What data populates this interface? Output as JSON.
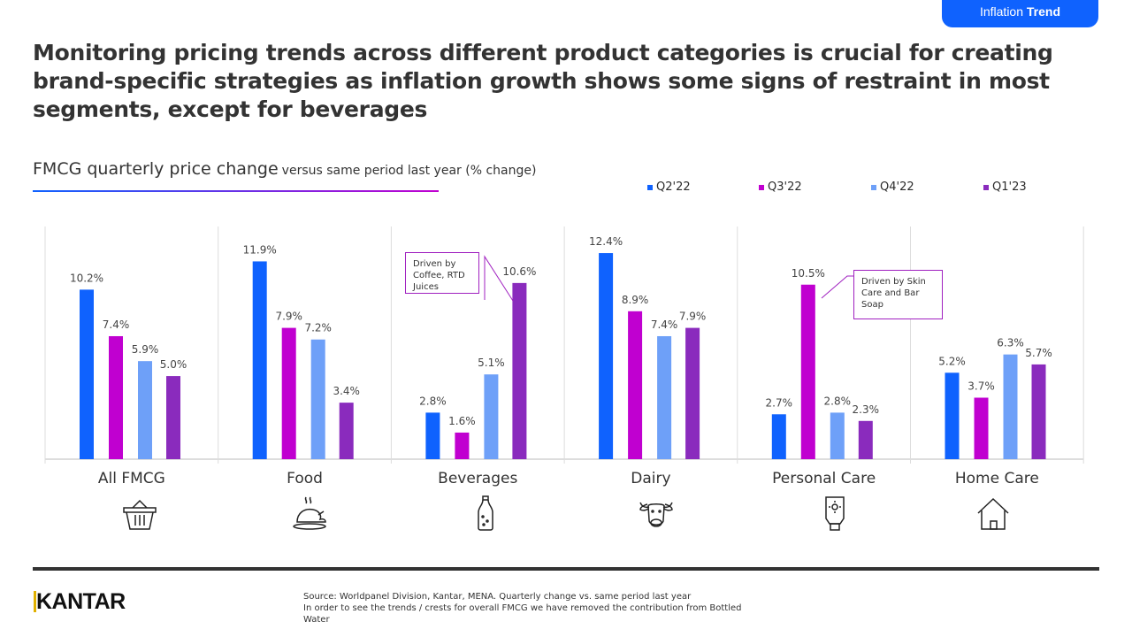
{
  "tag": {
    "prefix": "Inflation",
    "bold": "Trend"
  },
  "headline": "Monitoring pricing trends across different product categories is crucial for creating brand-specific strategies as inflation growth shows some signs of restraint in most segments, except for beverages",
  "subtitle": {
    "main": "FMCG quarterly price change",
    "detail": "versus same period last year (% change)"
  },
  "chart_data": {
    "type": "bar",
    "categories": [
      "All FMCG",
      "Food",
      "Beverages",
      "Dairy",
      "Personal Care",
      "Home Care"
    ],
    "series": [
      {
        "name": "Q2'22",
        "color": "#0f62fe",
        "values": [
          10.2,
          11.9,
          2.8,
          12.4,
          2.7,
          5.2
        ]
      },
      {
        "name": "Q3'22",
        "color": "#c000d0",
        "values": [
          7.4,
          7.9,
          1.6,
          8.9,
          10.5,
          3.7
        ]
      },
      {
        "name": "Q4'22",
        "color": "#6ea0f8",
        "values": [
          5.9,
          7.2,
          5.1,
          7.4,
          2.8,
          6.3
        ]
      },
      {
        "name": "Q1'23",
        "color": "#8a2bbd",
        "values": [
          5.0,
          3.4,
          10.6,
          7.9,
          2.3,
          5.7
        ]
      }
    ],
    "ylim": [
      0,
      14
    ],
    "unit": "%",
    "legend": "top-right",
    "grid": false,
    "annotations": [
      {
        "category": "Beverages",
        "text": "Driven by Coffee, RTD Juices"
      },
      {
        "category": "Personal Care",
        "text": "Driven by Skin Care and Bar Soap"
      }
    ]
  },
  "icons": [
    "basket-icon",
    "chicken-icon",
    "bottle-icon",
    "cow-icon",
    "lotion-tube-icon",
    "house-icon"
  ],
  "footer": {
    "logo": "KANTAR",
    "source_line1": "Source: Worldpanel Division, Kantar, MENA. Quarterly change vs. same period last year",
    "source_line2": "In order to see the trends / crests for overall FMCG we have removed the contribution from Bottled Water"
  }
}
